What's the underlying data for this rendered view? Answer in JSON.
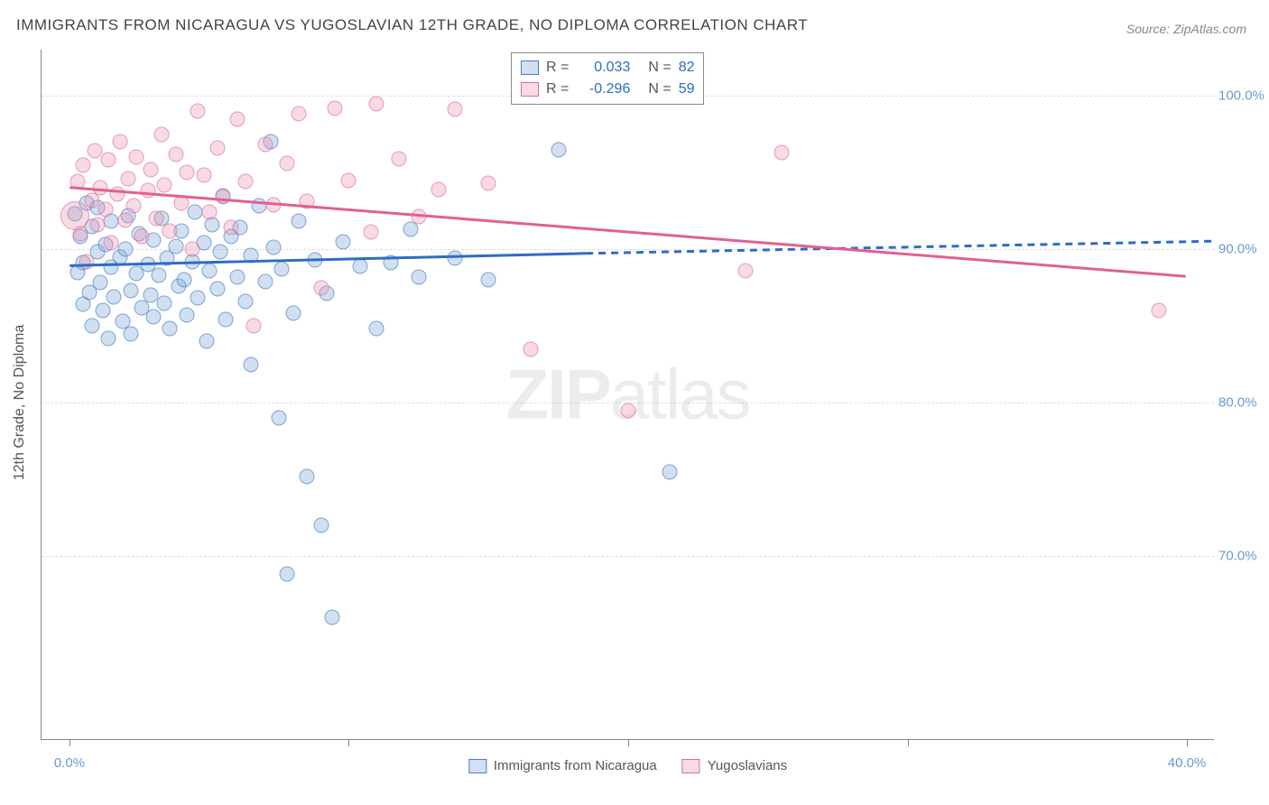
{
  "title": "IMMIGRANTS FROM NICARAGUA VS YUGOSLAVIAN 12TH GRADE, NO DIPLOMA CORRELATION CHART",
  "source": "Source: ZipAtlas.com",
  "watermark_prefix": "ZIP",
  "watermark_suffix": "atlas",
  "y_axis_label": "12th Grade, No Diploma",
  "chart": {
    "type": "scatter",
    "background_color": "#ffffff",
    "grid_color": "#dddddd",
    "axis_color": "#888888",
    "xlim": [
      -1,
      41
    ],
    "ylim": [
      58,
      103
    ],
    "y_ticks": [
      70,
      80,
      90,
      100
    ],
    "y_tick_labels": [
      "70.0%",
      "80.0%",
      "90.0%",
      "100.0%"
    ],
    "x_ticks": [
      0,
      10,
      20,
      30,
      40
    ],
    "x_tick_labels": [
      "0.0%",
      "",
      "",
      "",
      "40.0%"
    ],
    "label_color": "#6a99d0",
    "label_fontsize": 15
  },
  "series": [
    {
      "name": "Immigrants from Nicaragua",
      "color_fill": "rgba(120,165,215,0.35)",
      "color_stroke": "#4e7bc0",
      "line_color": "#2d6cc5",
      "R": "0.033",
      "N": "82",
      "reg_start": {
        "x": 0,
        "y": 88.9
      },
      "reg_end_solid": {
        "x": 18.5,
        "y": 89.7
      },
      "reg_end_dash": {
        "x": 41,
        "y": 90.5
      },
      "points": [
        {
          "x": 0.2,
          "y": 92.3
        },
        {
          "x": 0.3,
          "y": 88.5
        },
        {
          "x": 0.4,
          "y": 90.8
        },
        {
          "x": 0.5,
          "y": 86.4
        },
        {
          "x": 0.5,
          "y": 89.1
        },
        {
          "x": 0.6,
          "y": 93.0
        },
        {
          "x": 0.7,
          "y": 87.2
        },
        {
          "x": 0.8,
          "y": 91.5
        },
        {
          "x": 0.8,
          "y": 85.0
        },
        {
          "x": 1.0,
          "y": 89.8
        },
        {
          "x": 1.0,
          "y": 92.7
        },
        {
          "x": 1.1,
          "y": 87.8
        },
        {
          "x": 1.2,
          "y": 86.0
        },
        {
          "x": 1.3,
          "y": 90.3
        },
        {
          "x": 1.4,
          "y": 84.2
        },
        {
          "x": 1.5,
          "y": 88.8
        },
        {
          "x": 1.5,
          "y": 91.8
        },
        {
          "x": 1.6,
          "y": 86.9
        },
        {
          "x": 1.8,
          "y": 89.5
        },
        {
          "x": 1.9,
          "y": 85.3
        },
        {
          "x": 2.0,
          "y": 90.0
        },
        {
          "x": 2.1,
          "y": 92.2
        },
        {
          "x": 2.2,
          "y": 87.3
        },
        {
          "x": 2.2,
          "y": 84.5
        },
        {
          "x": 2.4,
          "y": 88.4
        },
        {
          "x": 2.5,
          "y": 91.0
        },
        {
          "x": 2.6,
          "y": 86.2
        },
        {
          "x": 2.8,
          "y": 89.0
        },
        {
          "x": 2.9,
          "y": 87.0
        },
        {
          "x": 3.0,
          "y": 90.6
        },
        {
          "x": 3.0,
          "y": 85.6
        },
        {
          "x": 3.2,
          "y": 88.3
        },
        {
          "x": 3.3,
          "y": 92.0
        },
        {
          "x": 3.4,
          "y": 86.5
        },
        {
          "x": 3.5,
          "y": 89.4
        },
        {
          "x": 3.6,
          "y": 84.8
        },
        {
          "x": 3.8,
          "y": 90.2
        },
        {
          "x": 3.9,
          "y": 87.6
        },
        {
          "x": 4.0,
          "y": 91.2
        },
        {
          "x": 4.1,
          "y": 88.0
        },
        {
          "x": 4.2,
          "y": 85.7
        },
        {
          "x": 4.4,
          "y": 89.2
        },
        {
          "x": 4.5,
          "y": 92.4
        },
        {
          "x": 4.6,
          "y": 86.8
        },
        {
          "x": 4.8,
          "y": 90.4
        },
        {
          "x": 4.9,
          "y": 84.0
        },
        {
          "x": 5.0,
          "y": 88.6
        },
        {
          "x": 5.1,
          "y": 91.6
        },
        {
          "x": 5.3,
          "y": 87.4
        },
        {
          "x": 5.4,
          "y": 89.8
        },
        {
          "x": 5.5,
          "y": 93.5
        },
        {
          "x": 5.6,
          "y": 85.4
        },
        {
          "x": 5.8,
          "y": 90.8
        },
        {
          "x": 6.0,
          "y": 88.2
        },
        {
          "x": 6.1,
          "y": 91.4
        },
        {
          "x": 6.3,
          "y": 86.6
        },
        {
          "x": 6.5,
          "y": 89.6
        },
        {
          "x": 6.5,
          "y": 82.5
        },
        {
          "x": 6.8,
          "y": 92.8
        },
        {
          "x": 7.0,
          "y": 87.9
        },
        {
          "x": 7.2,
          "y": 97.0
        },
        {
          "x": 7.3,
          "y": 90.1
        },
        {
          "x": 7.5,
          "y": 79.0
        },
        {
          "x": 7.6,
          "y": 88.7
        },
        {
          "x": 7.8,
          "y": 68.8
        },
        {
          "x": 8.0,
          "y": 85.8
        },
        {
          "x": 8.2,
          "y": 91.8
        },
        {
          "x": 8.5,
          "y": 75.2
        },
        {
          "x": 8.8,
          "y": 89.3
        },
        {
          "x": 9.0,
          "y": 72.0
        },
        {
          "x": 9.2,
          "y": 87.1
        },
        {
          "x": 9.4,
          "y": 66.0
        },
        {
          "x": 9.8,
          "y": 90.5
        },
        {
          "x": 10.4,
          "y": 88.9
        },
        {
          "x": 11.0,
          "y": 84.8
        },
        {
          "x": 11.5,
          "y": 89.1
        },
        {
          "x": 12.2,
          "y": 91.3
        },
        {
          "x": 12.5,
          "y": 88.2
        },
        {
          "x": 13.8,
          "y": 89.4
        },
        {
          "x": 15.0,
          "y": 88.0
        },
        {
          "x": 17.5,
          "y": 96.5
        },
        {
          "x": 21.5,
          "y": 75.5
        }
      ]
    },
    {
      "name": "Yugoslavians",
      "color_fill": "rgba(235,150,180,0.35)",
      "color_stroke": "#dc6e96",
      "line_color": "#e26091",
      "R": "-0.296",
      "N": "59",
      "reg_start": {
        "x": 0,
        "y": 94.0
      },
      "reg_end_solid": {
        "x": 40,
        "y": 88.2
      },
      "points": [
        {
          "x": 0.2,
          "y": 92.2,
          "big": true
        },
        {
          "x": 0.3,
          "y": 94.4
        },
        {
          "x": 0.4,
          "y": 91.0
        },
        {
          "x": 0.5,
          "y": 95.5
        },
        {
          "x": 0.6,
          "y": 89.2
        },
        {
          "x": 0.8,
          "y": 93.2
        },
        {
          "x": 0.9,
          "y": 96.4
        },
        {
          "x": 1.0,
          "y": 91.6
        },
        {
          "x": 1.1,
          "y": 94.0
        },
        {
          "x": 1.3,
          "y": 92.6
        },
        {
          "x": 1.4,
          "y": 95.8
        },
        {
          "x": 1.5,
          "y": 90.4
        },
        {
          "x": 1.7,
          "y": 93.6
        },
        {
          "x": 1.8,
          "y": 97.0
        },
        {
          "x": 2.0,
          "y": 91.9
        },
        {
          "x": 2.1,
          "y": 94.6
        },
        {
          "x": 2.3,
          "y": 92.8
        },
        {
          "x": 2.4,
          "y": 96.0
        },
        {
          "x": 2.6,
          "y": 90.8
        },
        {
          "x": 2.8,
          "y": 93.8
        },
        {
          "x": 2.9,
          "y": 95.2
        },
        {
          "x": 3.1,
          "y": 92.0
        },
        {
          "x": 3.3,
          "y": 97.5
        },
        {
          "x": 3.4,
          "y": 94.2
        },
        {
          "x": 3.6,
          "y": 91.2
        },
        {
          "x": 3.8,
          "y": 96.2
        },
        {
          "x": 4.0,
          "y": 93.0
        },
        {
          "x": 4.2,
          "y": 95.0
        },
        {
          "x": 4.4,
          "y": 90.0
        },
        {
          "x": 4.6,
          "y": 99.0
        },
        {
          "x": 4.8,
          "y": 94.8
        },
        {
          "x": 5.0,
          "y": 92.4
        },
        {
          "x": 5.3,
          "y": 96.6
        },
        {
          "x": 5.5,
          "y": 93.4
        },
        {
          "x": 5.8,
          "y": 91.4
        },
        {
          "x": 6.0,
          "y": 98.5
        },
        {
          "x": 6.3,
          "y": 94.4
        },
        {
          "x": 6.6,
          "y": 85.0
        },
        {
          "x": 7.0,
          "y": 96.8
        },
        {
          "x": 7.3,
          "y": 92.9
        },
        {
          "x": 7.8,
          "y": 95.6
        },
        {
          "x": 8.2,
          "y": 98.8
        },
        {
          "x": 8.5,
          "y": 93.1
        },
        {
          "x": 9.0,
          "y": 87.5
        },
        {
          "x": 9.5,
          "y": 99.2
        },
        {
          "x": 10.0,
          "y": 94.5
        },
        {
          "x": 10.8,
          "y": 91.1
        },
        {
          "x": 11.0,
          "y": 99.5
        },
        {
          "x": 11.8,
          "y": 95.9
        },
        {
          "x": 12.5,
          "y": 92.1
        },
        {
          "x": 13.2,
          "y": 93.9
        },
        {
          "x": 13.8,
          "y": 99.1
        },
        {
          "x": 15.0,
          "y": 94.3
        },
        {
          "x": 16.5,
          "y": 83.5
        },
        {
          "x": 18.5,
          "y": 100.0
        },
        {
          "x": 20.0,
          "y": 79.5
        },
        {
          "x": 24.2,
          "y": 88.6
        },
        {
          "x": 25.5,
          "y": 96.3
        },
        {
          "x": 39.0,
          "y": 86.0
        }
      ]
    }
  ],
  "legend_top": {
    "r_label": "R =",
    "n_label": "N ="
  },
  "legend_bottom": [
    {
      "swatch_fill": "rgba(120,165,215,0.35)",
      "swatch_stroke": "#4e7bc0",
      "label": "Immigrants from Nicaragua"
    },
    {
      "swatch_fill": "rgba(235,150,180,0.35)",
      "swatch_stroke": "#dc6e96",
      "label": "Yugoslavians"
    }
  ]
}
